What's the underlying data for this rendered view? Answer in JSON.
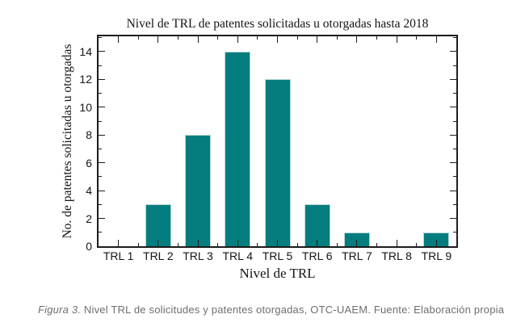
{
  "figure": {
    "title": "Nivel de TRL de patentes solicitadas u otorgadas hasta 2018",
    "y_axis_label": "No. de patentes solicitadas u otorgadas",
    "x_axis_label": "Nivel de TRL"
  },
  "chart_data": {
    "type": "bar",
    "title": "Nivel de TRL de patentes solicitadas u otorgadas hasta 2018",
    "xlabel": "Nivel de TRL",
    "ylabel": "No. de patentes solicitadas u otorgadas",
    "categories": [
      "TRL 1",
      "TRL 2",
      "TRL 3",
      "TRL 4",
      "TRL 5",
      "TRL 6",
      "TRL 7",
      "TRL 8",
      "TRL 9"
    ],
    "values": [
      0,
      3,
      8,
      14,
      12,
      3,
      1,
      0,
      1
    ],
    "ylim": [
      0,
      15.1
    ],
    "ytick_major": [
      0,
      2,
      4,
      6,
      8,
      10,
      12,
      14
    ],
    "ytick_minor_step": 1,
    "grid": false,
    "legend": "none",
    "bar_color": "#057d7e",
    "bar_edge_color": "#b5d6d6",
    "axis_color": "#1c1c1c"
  },
  "caption": {
    "prefix": "Figura 3.",
    "text": " Nivel TRL de solicitudes y patentes otorgadas, OTC-UAEM. Fuente: Elaboración propia"
  }
}
